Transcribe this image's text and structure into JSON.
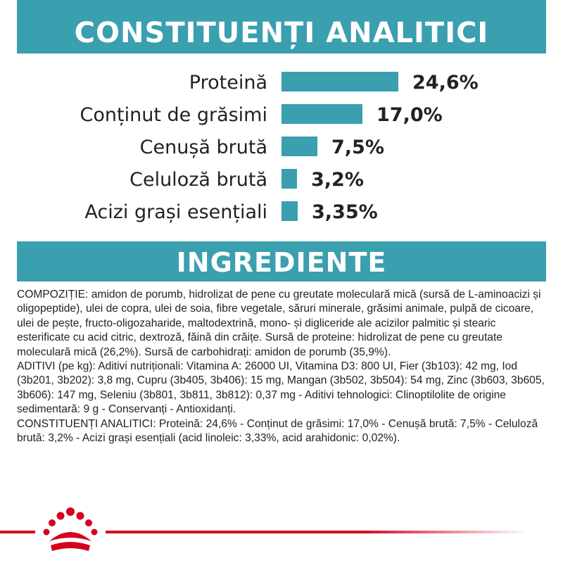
{
  "header": {
    "title": "CONSTITUENȚI ANALITICI"
  },
  "chart_data": {
    "type": "bar",
    "orientation": "horizontal",
    "categories": [
      "Proteină",
      "Conținut de grăsimi",
      "Cenușă brută",
      "Celuloză brută",
      "Acizi grași esențiali"
    ],
    "values": [
      24.6,
      17.0,
      7.5,
      3.2,
      3.35
    ],
    "value_labels": [
      "24,6%",
      "17,0%",
      "7,5%",
      "3,2%",
      "3,35%"
    ],
    "bar_color": "#3a9fae",
    "title": "CONSTITUENȚI ANALITICI",
    "xlim": [
      0,
      24.6
    ],
    "grid": false,
    "legend": "none"
  },
  "ingredients": {
    "title": "INGREDIENTE",
    "paragraphs": [
      "COMPOZIȚIE: amidon de porumb, hidrolizat de pene cu greutate moleculară mică (sursă de L-aminoacizi și oligopeptide), ulei de copra, ulei de soia, fibre vegetale, săruri minerale, grăsimi animale, pulpă de cicoare, ulei de pește, fructo-oligozaharide, maltodextrină, mono- și digliceride ale acizilor palmitic și stearic esterificate cu acid citric, dextroză, făină din crăițe. Sursă de proteine: hidrolizat de pene cu greutate moleculară mică (26,2%). Sursă de carbohidrați: amidon de porumb (35,9%).",
      "ADITIVI (pe kg): Aditivi nutriționali: Vitamina A: 26000 UI, Vitamina D3: 800 UI, Fier (3b103): 42 mg, Iod (3b201, 3b202): 3,8 mg, Cupru (3b405, 3b406): 15 mg, Mangan (3b502, 3b504): 54 mg, Zinc (3b603, 3b605, 3b606): 147 mg, Seleniu (3b801, 3b811, 3b812): 0,37 mg - Aditivi tehnologici: Clinoptilolite de origine sedimentară: 9 g - Conservanți - Antioxidanți.",
      "CONSTITUENȚI ANALITICI: Proteină: 24,6% - Conținut de grăsimi: 17,0% - Cenușă brută: 7,5% - Celuloză brută: 3,2% - Acizi grași esențiali (acid linoleic: 3,33%, acid arahidonic: 0,02%)."
    ]
  },
  "footer": {
    "logo_icon": "crown-logo-icon",
    "accent_color": "#d6001c"
  }
}
